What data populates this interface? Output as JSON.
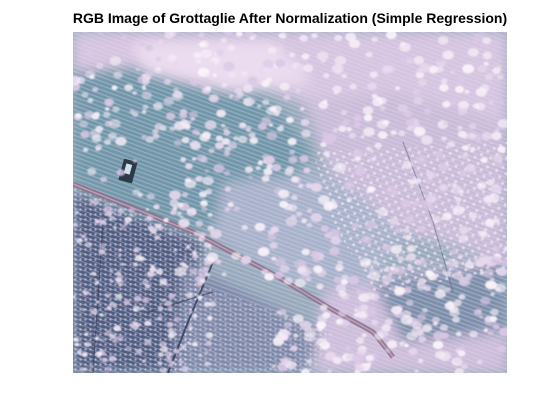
{
  "figure": {
    "title": "RGB Image of Grottaglie After Normalization (Simple Regression)"
  },
  "image": {
    "description_icon": "aerial-image",
    "palette": {
      "blue_teal": "#6f93a6",
      "light_blue": "#9fbccb",
      "lavender": "#d9c7e3",
      "pink_white": "#f1e6f3",
      "purple_grey": "#8d8aa8",
      "dark_blue": "#3e4a6b",
      "road": "#8c6e86"
    }
  }
}
